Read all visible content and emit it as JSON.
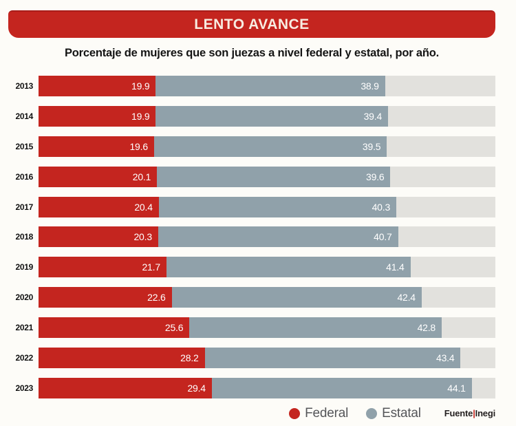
{
  "header": {
    "banner_title": "LENTO AVANCE",
    "subtitle": "Porcentaje de mujeres que son juezas a nivel federal y estatal, por año."
  },
  "chart_data": {
    "type": "bar",
    "orientation": "horizontal",
    "stacked": true,
    "categories": [
      "2013",
      "2014",
      "2015",
      "2016",
      "2017",
      "2018",
      "2019",
      "2020",
      "2021",
      "2022",
      "2023"
    ],
    "series": [
      {
        "name": "Federal",
        "color": "#c4251f",
        "values": [
          19.9,
          19.9,
          19.6,
          20.1,
          20.4,
          20.3,
          21.7,
          22.6,
          25.6,
          28.2,
          29.4
        ]
      },
      {
        "name": "Estatal",
        "color": "#90a1aa",
        "values": [
          38.9,
          39.4,
          39.5,
          39.6,
          40.3,
          40.7,
          41.4,
          42.4,
          42.8,
          43.4,
          44.1
        ]
      }
    ],
    "xlim": [
      0,
      77.5
    ],
    "track_color": "#e2e1dd",
    "value_labels": "inside-end, white, one decimal",
    "grid": false,
    "legend_position": "bottom-right"
  },
  "source": {
    "fuente": "Fuente",
    "divider": "|",
    "inegi": "Inegi"
  }
}
